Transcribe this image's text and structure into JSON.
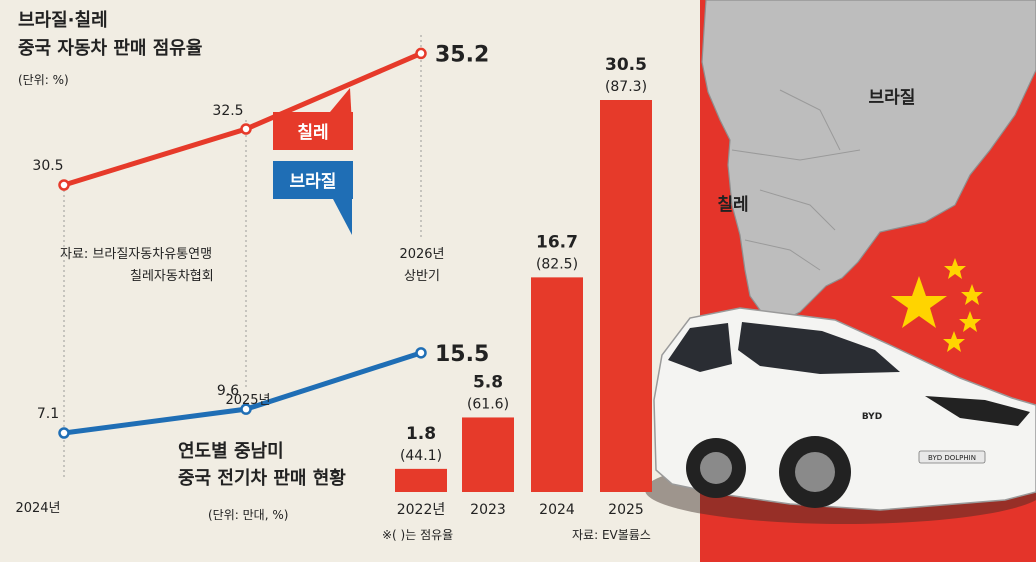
{
  "colors": {
    "background": "#f1ede3",
    "chile": "#e63a2a",
    "brazil": "#1f6eb5",
    "bar": "#e63a2a",
    "map_land": "#bdbdbd",
    "flag_red": "#e4342a",
    "flag_star": "#ffd400"
  },
  "line_panel": {
    "title_line1": "브라질·칠레",
    "title_line2": "중국 자동차 판매 점유율",
    "unit": "(단위: %)",
    "source_line1": "자료: 브라질자동차유통연맹",
    "source_line2": "칠레자동차협회"
  },
  "bar_panel": {
    "title_line1": "연도별 중남미",
    "title_line2": "중국 전기차 판매 현황",
    "unit": "(단위: 만대, %)",
    "footnote": "※( )는 점유율",
    "source": "자료: EV볼륨스"
  },
  "map": {
    "label_brazil": "브라질",
    "label_chile": "칠레",
    "car_badge": "BYD DOLPHIN",
    "car_logo": "BYD",
    "icons": [
      "south-america-map-icon",
      "china-flag-icon",
      "ev-car-icon"
    ]
  },
  "chart_data": [
    {
      "type": "line",
      "title": "브라질·칠레 중국 자동차 판매 점유율",
      "unit": "(단위: %)",
      "x": [
        "2024년",
        "2025년",
        "2026년 상반기"
      ],
      "x_tick_labels": [
        "2024년",
        "2025년",
        "2026년",
        "상반기"
      ],
      "series": [
        {
          "name": "칠레",
          "values": [
            30.5,
            32.5,
            35.2
          ],
          "labels": [
            "30.5",
            "32.5",
            "35.2"
          ]
        },
        {
          "name": "브라질",
          "values": [
            7.1,
            9.6,
            15.5
          ],
          "labels": [
            "7.1",
            "9.6",
            "15.5"
          ]
        }
      ],
      "legend": "inline labels near series",
      "grid": false
    },
    {
      "type": "bar",
      "title": "연도별 중남미 중국 전기차 판매 현황",
      "unit": "(단위: 만대, %)",
      "categories": [
        "2022년",
        "2023",
        "2024",
        "2025"
      ],
      "values": [
        1.8,
        5.8,
        16.7,
        30.5
      ],
      "value_labels": [
        "1.8",
        "5.8",
        "16.7",
        "30.5"
      ],
      "shares": [
        44.1,
        61.6,
        82.5,
        87.3
      ],
      "share_labels": [
        "(44.1)",
        "(61.6)",
        "(82.5)",
        "(87.3)"
      ],
      "ylim": [
        0,
        30.5
      ]
    }
  ]
}
